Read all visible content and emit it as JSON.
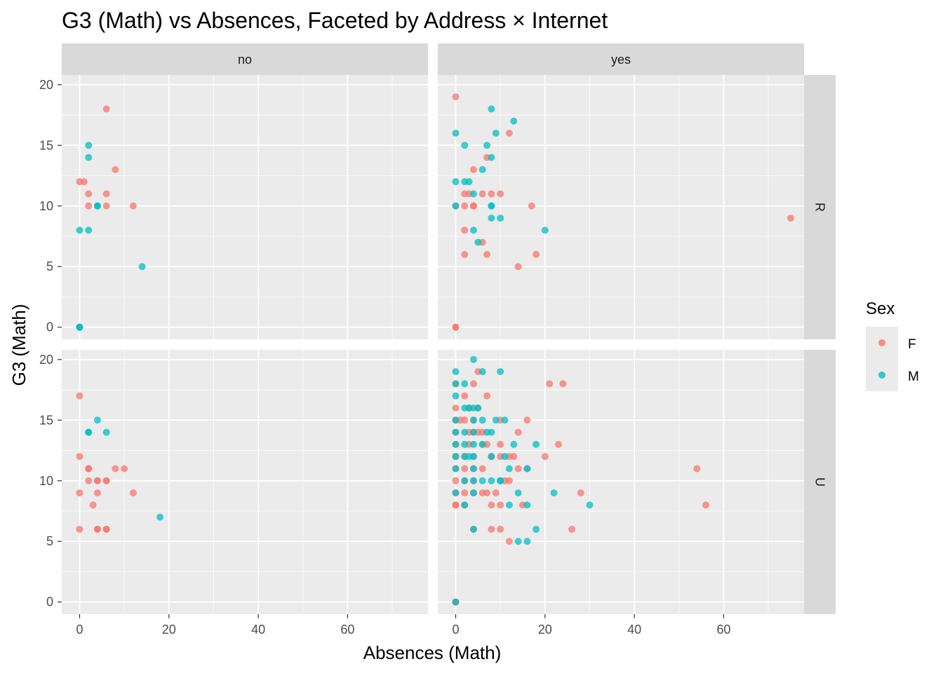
{
  "chart_data": {
    "type": "scatter",
    "title": "G3 (Math) vs Absences, Faceted by Address × Internet",
    "xlabel": "Absences (Math)",
    "ylabel": "G3 (Math)",
    "xlim": [
      -4,
      78
    ],
    "ylim": [
      -1,
      20.8
    ],
    "x_ticks": [
      0,
      20,
      40,
      60
    ],
    "y_ticks": [
      0,
      5,
      10,
      15,
      20
    ],
    "x_tick_labels": [
      "0",
      "20",
      "40",
      "60"
    ],
    "y_tick_labels": [
      "0",
      "5",
      "10",
      "15",
      "20"
    ],
    "facet_columns": [
      "no",
      "yes"
    ],
    "facet_rows": [
      "R",
      "U"
    ],
    "legend": {
      "title": "Sex",
      "position": "right",
      "items": [
        {
          "label": "F",
          "color": "#F8766D"
        },
        {
          "label": "M",
          "color": "#00BFC4"
        }
      ]
    },
    "panels": [
      {
        "col": "no",
        "row": "R",
        "F": [
          [
            0,
            12
          ],
          [
            1,
            12
          ],
          [
            6,
            18
          ],
          [
            2,
            11
          ],
          [
            2,
            10
          ],
          [
            6,
            11
          ],
          [
            6,
            10
          ],
          [
            8,
            13
          ],
          [
            12,
            10
          ],
          [
            0,
            0
          ]
        ],
        "M": [
          [
            2,
            15
          ],
          [
            2,
            14
          ],
          [
            4,
            10
          ],
          [
            4,
            10
          ],
          [
            2,
            8
          ],
          [
            0,
            8
          ],
          [
            14,
            5
          ],
          [
            0,
            0
          ],
          [
            0,
            0
          ]
        ]
      },
      {
        "col": "yes",
        "row": "R",
        "F": [
          [
            0,
            19
          ],
          [
            0,
            10
          ],
          [
            2,
            11
          ],
          [
            2,
            10
          ],
          [
            2,
            8
          ],
          [
            2,
            6
          ],
          [
            3,
            11
          ],
          [
            4,
            13
          ],
          [
            4,
            10
          ],
          [
            4,
            10
          ],
          [
            6,
            11
          ],
          [
            6,
            7
          ],
          [
            7,
            14
          ],
          [
            7,
            6
          ],
          [
            8,
            11
          ],
          [
            10,
            11
          ],
          [
            12,
            16
          ],
          [
            14,
            5
          ],
          [
            17,
            10
          ],
          [
            18,
            6
          ],
          [
            75,
            9
          ],
          [
            0,
            0
          ],
          [
            0,
            0
          ]
        ],
        "M": [
          [
            0,
            16
          ],
          [
            0,
            12
          ],
          [
            0,
            10
          ],
          [
            2,
            15
          ],
          [
            2,
            12
          ],
          [
            3,
            12
          ],
          [
            4,
            11
          ],
          [
            4,
            8
          ],
          [
            5,
            7
          ],
          [
            6,
            13
          ],
          [
            7,
            15
          ],
          [
            8,
            18
          ],
          [
            8,
            14
          ],
          [
            8,
            10
          ],
          [
            8,
            10
          ],
          [
            8,
            9
          ],
          [
            9,
            16
          ],
          [
            10,
            9
          ],
          [
            13,
            17
          ],
          [
            20,
            8
          ]
        ]
      },
      {
        "col": "no",
        "row": "U",
        "F": [
          [
            0,
            17
          ],
          [
            0,
            12
          ],
          [
            0,
            9
          ],
          [
            0,
            6
          ],
          [
            2,
            11
          ],
          [
            2,
            11
          ],
          [
            2,
            10
          ],
          [
            3,
            8
          ],
          [
            4,
            10
          ],
          [
            4,
            10
          ],
          [
            4,
            9
          ],
          [
            4,
            6
          ],
          [
            4,
            6
          ],
          [
            6,
            10
          ],
          [
            6,
            10
          ],
          [
            6,
            6
          ],
          [
            6,
            6
          ],
          [
            8,
            11
          ],
          [
            10,
            11
          ],
          [
            12,
            9
          ]
        ],
        "M": [
          [
            2,
            14
          ],
          [
            2,
            14
          ],
          [
            4,
            15
          ],
          [
            6,
            14
          ],
          [
            18,
            7
          ]
        ]
      },
      {
        "col": "yes",
        "row": "U",
        "F": [
          [
            0,
            18
          ],
          [
            0,
            16
          ],
          [
            0,
            15
          ],
          [
            0,
            14
          ],
          [
            0,
            13
          ],
          [
            0,
            12
          ],
          [
            0,
            11
          ],
          [
            0,
            10
          ],
          [
            0,
            9
          ],
          [
            0,
            8
          ],
          [
            0,
            8
          ],
          [
            0,
            0
          ],
          [
            0,
            0
          ],
          [
            0,
            0
          ],
          [
            1,
            15
          ],
          [
            2,
            17
          ],
          [
            2,
            15
          ],
          [
            2,
            12
          ],
          [
            2,
            11
          ],
          [
            2,
            10
          ],
          [
            2,
            9
          ],
          [
            2,
            8
          ],
          [
            3,
            16
          ],
          [
            3,
            14
          ],
          [
            3,
            13
          ],
          [
            4,
            18
          ],
          [
            4,
            15
          ],
          [
            4,
            14
          ],
          [
            4,
            12
          ],
          [
            4,
            11
          ],
          [
            4,
            10
          ],
          [
            4,
            9
          ],
          [
            4,
            6
          ],
          [
            5,
            19
          ],
          [
            5,
            16
          ],
          [
            5,
            14
          ],
          [
            6,
            14
          ],
          [
            6,
            13
          ],
          [
            6,
            11
          ],
          [
            6,
            9
          ],
          [
            7,
            17
          ],
          [
            7,
            13
          ],
          [
            7,
            9
          ],
          [
            8,
            12
          ],
          [
            8,
            8
          ],
          [
            8,
            6
          ],
          [
            9,
            9
          ],
          [
            10,
            15
          ],
          [
            10,
            13
          ],
          [
            10,
            12
          ],
          [
            10,
            8
          ],
          [
            10,
            6
          ],
          [
            11,
            10
          ],
          [
            12,
            12
          ],
          [
            12,
            10
          ],
          [
            12,
            5
          ],
          [
            13,
            12
          ],
          [
            14,
            14
          ],
          [
            14,
            11
          ],
          [
            15,
            8
          ],
          [
            16,
            15
          ],
          [
            16,
            11
          ],
          [
            20,
            12
          ],
          [
            21,
            18
          ],
          [
            23,
            13
          ],
          [
            24,
            18
          ],
          [
            26,
            6
          ],
          [
            28,
            9
          ],
          [
            54,
            11
          ],
          [
            56,
            8
          ]
        ],
        "M": [
          [
            0,
            19
          ],
          [
            0,
            18
          ],
          [
            0,
            17
          ],
          [
            0,
            15
          ],
          [
            0,
            14
          ],
          [
            0,
            13
          ],
          [
            0,
            12
          ],
          [
            0,
            11
          ],
          [
            0,
            9
          ],
          [
            0,
            0
          ],
          [
            2,
            18
          ],
          [
            2,
            16
          ],
          [
            2,
            14
          ],
          [
            2,
            13
          ],
          [
            2,
            12
          ],
          [
            2,
            10
          ],
          [
            2,
            8
          ],
          [
            3,
            16
          ],
          [
            3,
            12
          ],
          [
            4,
            20
          ],
          [
            4,
            16
          ],
          [
            4,
            15
          ],
          [
            4,
            14
          ],
          [
            4,
            13
          ],
          [
            4,
            12
          ],
          [
            4,
            11
          ],
          [
            4,
            10
          ],
          [
            4,
            9
          ],
          [
            4,
            6
          ],
          [
            5,
            16
          ],
          [
            6,
            19
          ],
          [
            6,
            15
          ],
          [
            6,
            13
          ],
          [
            6,
            10
          ],
          [
            7,
            14
          ],
          [
            8,
            14
          ],
          [
            8,
            12
          ],
          [
            8,
            10
          ],
          [
            9,
            15
          ],
          [
            10,
            19
          ],
          [
            10,
            10
          ],
          [
            10,
            10
          ],
          [
            11,
            15
          ],
          [
            11,
            12
          ],
          [
            12,
            11
          ],
          [
            12,
            8
          ],
          [
            13,
            13
          ],
          [
            14,
            9
          ],
          [
            14,
            5
          ],
          [
            16,
            11
          ],
          [
            16,
            8
          ],
          [
            16,
            5
          ],
          [
            18,
            13
          ],
          [
            18,
            6
          ],
          [
            22,
            9
          ],
          [
            30,
            8
          ]
        ]
      }
    ]
  }
}
